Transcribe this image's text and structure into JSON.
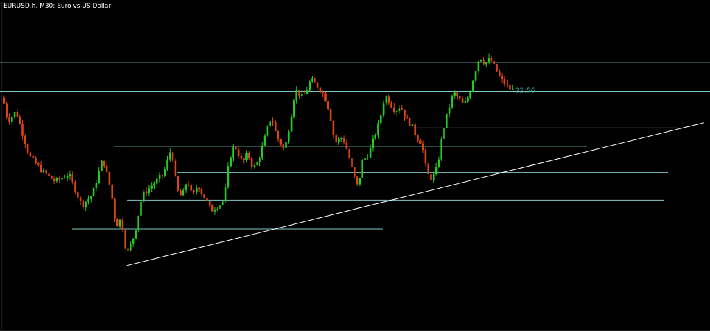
{
  "window": {
    "symbol": "EURUSD.h",
    "timeframe": "M30",
    "description": "Euro vs US Dollar"
  },
  "colors": {
    "background": "#000000",
    "bull": "#22cc22",
    "bear": "#dd4411",
    "level_line": "#7fc8c8",
    "trend_line": "#ffffff",
    "label": "#3fa09a",
    "frame": "#3a3a3a"
  },
  "chart_data": {
    "type": "candlestick",
    "title": "",
    "xlabel": "",
    "ylabel": "",
    "grid": false,
    "legend": "none",
    "ylim": [
      0,
      100
    ],
    "price_path": [
      [
        0,
        77
      ],
      [
        2,
        68
      ],
      [
        5,
        72
      ],
      [
        10,
        55
      ],
      [
        15,
        49
      ],
      [
        20,
        45
      ],
      [
        25,
        48
      ],
      [
        30,
        36
      ],
      [
        34,
        40
      ],
      [
        38,
        54
      ],
      [
        41,
        42
      ],
      [
        43,
        28
      ],
      [
        45,
        31
      ],
      [
        47,
        17
      ],
      [
        50,
        25
      ],
      [
        53,
        40
      ],
      [
        57,
        44
      ],
      [
        61,
        48
      ],
      [
        64,
        58
      ],
      [
        66,
        42
      ],
      [
        68,
        39
      ],
      [
        70,
        46
      ],
      [
        72,
        39
      ],
      [
        74,
        44
      ],
      [
        76,
        40
      ],
      [
        79,
        34
      ],
      [
        82,
        36
      ],
      [
        84,
        38
      ],
      [
        86,
        54
      ],
      [
        88,
        59
      ],
      [
        91,
        52
      ],
      [
        93,
        56
      ],
      [
        95,
        50
      ],
      [
        97,
        53
      ],
      [
        99,
        60
      ],
      [
        101,
        67
      ],
      [
        102,
        70
      ],
      [
        104,
        62
      ],
      [
        107,
        57
      ],
      [
        109,
        68
      ],
      [
        111,
        80
      ],
      [
        114,
        77
      ],
      [
        117,
        84
      ],
      [
        119,
        82
      ],
      [
        122,
        78
      ],
      [
        124,
        72
      ],
      [
        126,
        60
      ],
      [
        129,
        62
      ],
      [
        131,
        56
      ],
      [
        133,
        48
      ],
      [
        135,
        42
      ],
      [
        136,
        52
      ],
      [
        139,
        56
      ],
      [
        141,
        62
      ],
      [
        143,
        68
      ],
      [
        145,
        78
      ],
      [
        147,
        75
      ],
      [
        149,
        72
      ],
      [
        151,
        74
      ],
      [
        153,
        69
      ],
      [
        155,
        67
      ],
      [
        157,
        62
      ],
      [
        159,
        60
      ],
      [
        161,
        48
      ],
      [
        163,
        46
      ],
      [
        165,
        51
      ],
      [
        167,
        64
      ],
      [
        169,
        72
      ],
      [
        171,
        79
      ],
      [
        173,
        77
      ],
      [
        175,
        74
      ],
      [
        177,
        78
      ],
      [
        179,
        86
      ],
      [
        181,
        93
      ],
      [
        183,
        90
      ],
      [
        185,
        92
      ],
      [
        187,
        88
      ],
      [
        189,
        84
      ],
      [
        191,
        82
      ],
      [
        193,
        80
      ]
    ],
    "series": [
      {
        "values": []
      }
    ],
    "levels": [
      {
        "y": 90.5,
        "x_end": 1.0
      },
      {
        "y": 79.5,
        "x_end": 1.0
      },
      {
        "y": 65.5,
        "x_end": 0.955
      },
      {
        "y": 58.5,
        "x_end": 0.826
      },
      {
        "y": 48.5,
        "x_end": 0.941
      },
      {
        "y": 38,
        "x_end": 0.935
      },
      {
        "y": 27,
        "x_end": 0.539
      }
    ],
    "trendline": {
      "from": [
        47,
        13
      ],
      "to": [
        266,
        67.5
      ]
    },
    "price_label": {
      "text": "22:56",
      "y": 80
    }
  }
}
